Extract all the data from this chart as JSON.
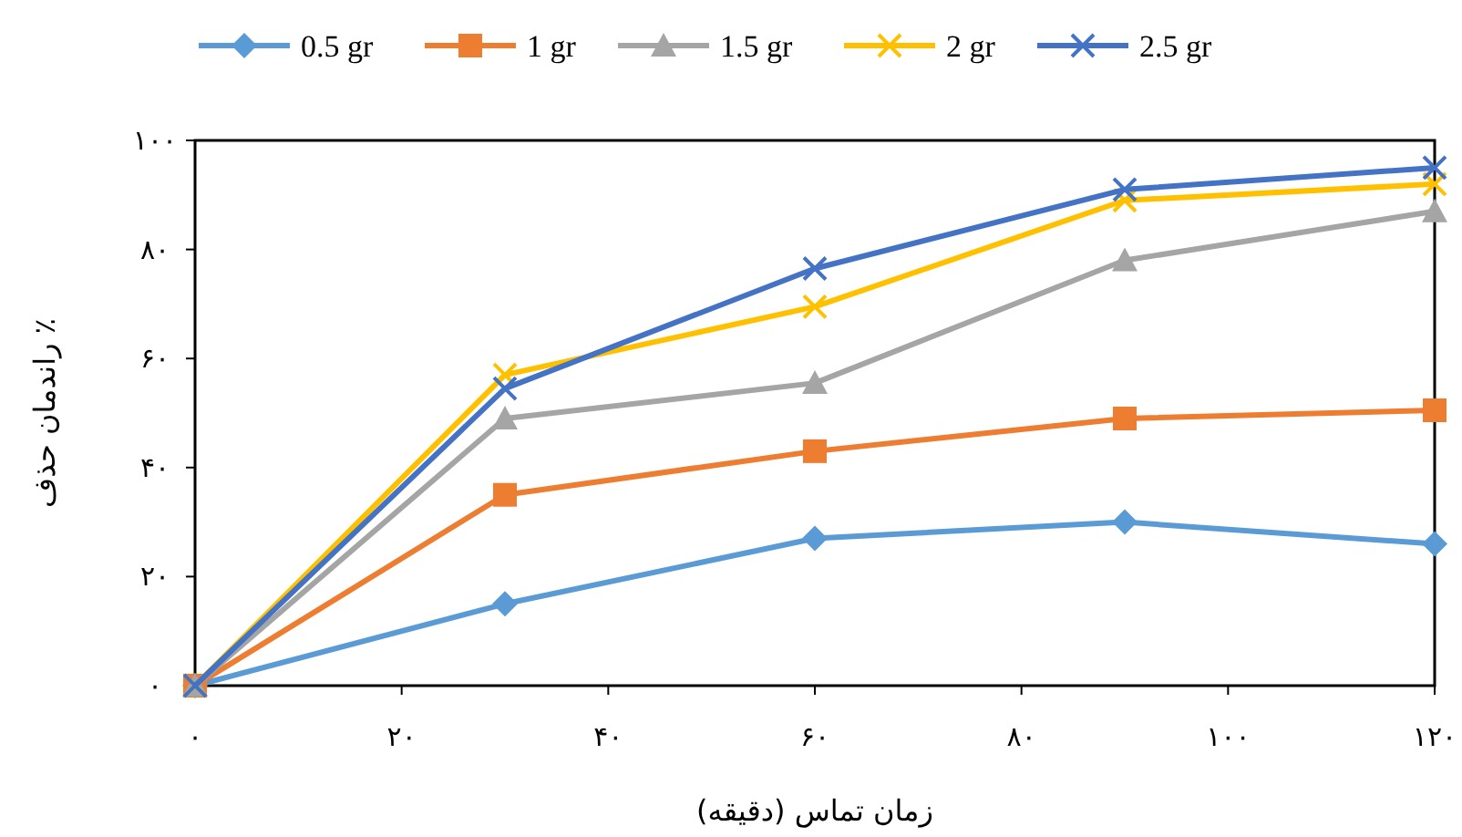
{
  "chart_data": {
    "type": "line",
    "xlabel": "زمان تماس (دقیقه)",
    "ylabel": "راندمان حذف ٪",
    "xlim": [
      0,
      120
    ],
    "ylim": [
      0,
      100
    ],
    "xticks": [
      {
        "value": 0,
        "label": "۰"
      },
      {
        "value": 20,
        "label": "۲۰"
      },
      {
        "value": 40,
        "label": "۴۰"
      },
      {
        "value": 60,
        "label": "۶۰"
      },
      {
        "value": 80,
        "label": "۸۰"
      },
      {
        "value": 100,
        "label": "۱۰۰"
      },
      {
        "value": 120,
        "label": "۱۲۰"
      }
    ],
    "yticks": [
      {
        "value": 0,
        "label": "۰"
      },
      {
        "value": 20,
        "label": "۲۰"
      },
      {
        "value": 40,
        "label": "۴۰"
      },
      {
        "value": 60,
        "label": "۶۰"
      },
      {
        "value": 80,
        "label": "۸۰"
      },
      {
        "value": 100,
        "label": "۱۰۰"
      }
    ],
    "x": [
      0,
      30,
      60,
      90,
      120
    ],
    "legend": "top",
    "grid": false,
    "series": [
      {
        "name": "0.5 gr",
        "color": "#5b9bd5",
        "marker": "diamond",
        "values": [
          0,
          15,
          27,
          30,
          26
        ]
      },
      {
        "name": "1 gr",
        "color": "#ed7d31",
        "marker": "square",
        "values": [
          0,
          35,
          43,
          49,
          50.5
        ]
      },
      {
        "name": "1.5 gr",
        "color": "#a5a5a5",
        "marker": "triangle",
        "values": [
          0,
          49,
          55.5,
          78,
          87
        ]
      },
      {
        "name": "2 gr",
        "color": "#ffc000",
        "marker": "cross",
        "values": [
          0,
          57,
          69.5,
          89,
          92
        ]
      },
      {
        "name": "2.5 gr",
        "color": "#4472c4",
        "marker": "cross",
        "values": [
          0,
          54.5,
          76.5,
          91,
          95
        ]
      }
    ]
  }
}
